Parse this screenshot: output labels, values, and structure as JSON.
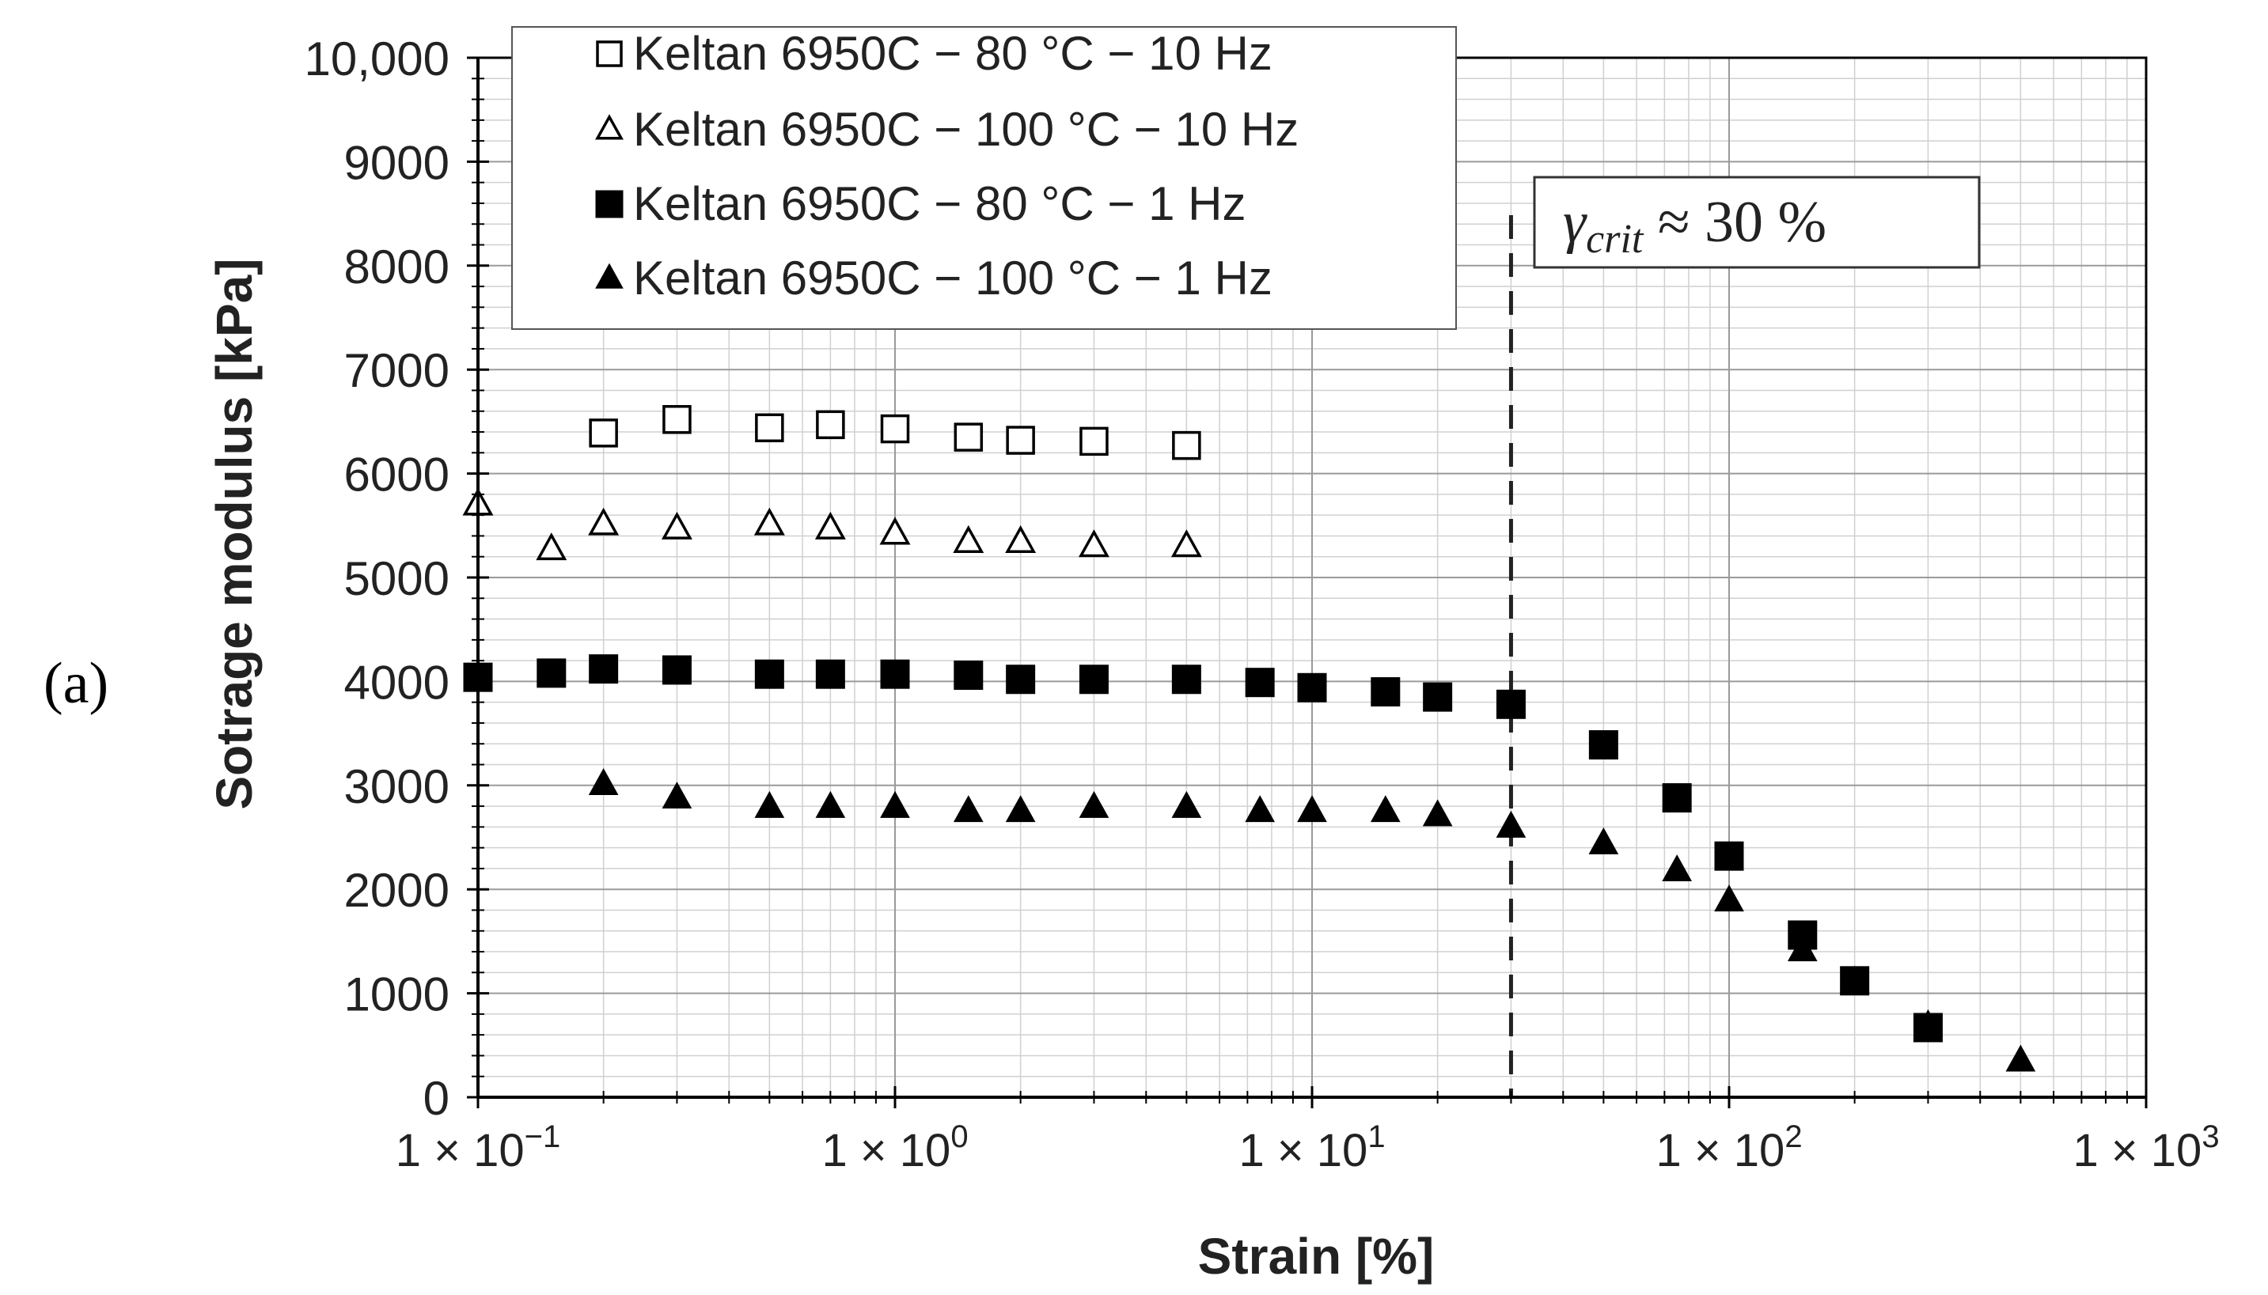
{
  "panel_label": "(a)",
  "chart_data": {
    "type": "scatter",
    "title": "",
    "xlabel": "Strain [%]",
    "ylabel": "Sotrage modulus [kPa]",
    "xscale": "log",
    "xlim": [
      0.1,
      1000
    ],
    "ylim": [
      0,
      10000
    ],
    "grid": true,
    "legend_position": "top-left",
    "x_ticks": [
      {
        "value": 0.1,
        "base": "1 × 10",
        "exp": "−1"
      },
      {
        "value": 1,
        "base": "1 × 10",
        "exp": "0"
      },
      {
        "value": 10,
        "base": "1 × 10",
        "exp": "1"
      },
      {
        "value": 100,
        "base": "1 × 10",
        "exp": "2"
      },
      {
        "value": 1000,
        "base": "1 × 10",
        "exp": "3"
      }
    ],
    "y_ticks": [
      {
        "value": 0,
        "label": "0"
      },
      {
        "value": 1000,
        "label": "1000"
      },
      {
        "value": 2000,
        "label": "2000"
      },
      {
        "value": 3000,
        "label": "3000"
      },
      {
        "value": 4000,
        "label": "4000"
      },
      {
        "value": 5000,
        "label": "5000"
      },
      {
        "value": 6000,
        "label": "6000"
      },
      {
        "value": 7000,
        "label": "7000"
      },
      {
        "value": 8000,
        "label": "8000"
      },
      {
        "value": 9000,
        "label": "9000"
      },
      {
        "value": 10000,
        "label": "10,000"
      }
    ],
    "series": [
      {
        "name": "Keltan 6950C − 80 °C − 10 Hz",
        "marker": "square",
        "filled": false,
        "points": [
          [
            0.2,
            6390
          ],
          [
            0.3,
            6520
          ],
          [
            0.5,
            6440
          ],
          [
            0.7,
            6470
          ],
          [
            1,
            6430
          ],
          [
            1.5,
            6350
          ],
          [
            2,
            6320
          ],
          [
            3,
            6310
          ],
          [
            5,
            6270
          ]
        ]
      },
      {
        "name": "Keltan 6950C − 100 °C − 10 Hz",
        "marker": "triangle",
        "filled": false,
        "points": [
          [
            0.1,
            5700
          ],
          [
            0.15,
            5270
          ],
          [
            0.2,
            5510
          ],
          [
            0.3,
            5470
          ],
          [
            0.5,
            5510
          ],
          [
            0.7,
            5470
          ],
          [
            1,
            5420
          ],
          [
            1.5,
            5340
          ],
          [
            2,
            5340
          ],
          [
            3,
            5300
          ],
          [
            5,
            5300
          ]
        ]
      },
      {
        "name": "Keltan 6950C − 80 °C − 1 Hz",
        "marker": "square",
        "filled": true,
        "points": [
          [
            0.1,
            4040
          ],
          [
            0.15,
            4080
          ],
          [
            0.2,
            4120
          ],
          [
            0.3,
            4110
          ],
          [
            0.5,
            4070
          ],
          [
            0.7,
            4070
          ],
          [
            1,
            4070
          ],
          [
            1.5,
            4060
          ],
          [
            2,
            4020
          ],
          [
            3,
            4020
          ],
          [
            5,
            4020
          ],
          [
            7.5,
            3990
          ],
          [
            10,
            3940
          ],
          [
            15,
            3900
          ],
          [
            20,
            3850
          ],
          [
            30,
            3780
          ],
          [
            50,
            3390
          ],
          [
            75,
            2880
          ],
          [
            100,
            2320
          ],
          [
            150,
            1560
          ],
          [
            200,
            1120
          ],
          [
            300,
            670
          ]
        ]
      },
      {
        "name": "Keltan 6950C − 100 °C − 1 Hz",
        "marker": "triangle",
        "filled": true,
        "points": [
          [
            0.2,
            3010
          ],
          [
            0.3,
            2880
          ],
          [
            0.5,
            2790
          ],
          [
            0.7,
            2790
          ],
          [
            1,
            2790
          ],
          [
            1.5,
            2750
          ],
          [
            2,
            2750
          ],
          [
            3,
            2790
          ],
          [
            5,
            2790
          ],
          [
            7.5,
            2750
          ],
          [
            10,
            2750
          ],
          [
            15,
            2750
          ],
          [
            20,
            2710
          ],
          [
            30,
            2600
          ],
          [
            50,
            2440
          ],
          [
            75,
            2180
          ],
          [
            100,
            1890
          ],
          [
            150,
            1410
          ],
          [
            200,
            1110
          ],
          [
            300,
            690
          ],
          [
            500,
            350
          ]
        ]
      }
    ],
    "annotations": [
      {
        "type": "vertical-dashed-line",
        "x": 30,
        "label_var": "γ",
        "label_sub": "crit",
        "label_rest": " ≈ 30 %"
      }
    ]
  }
}
